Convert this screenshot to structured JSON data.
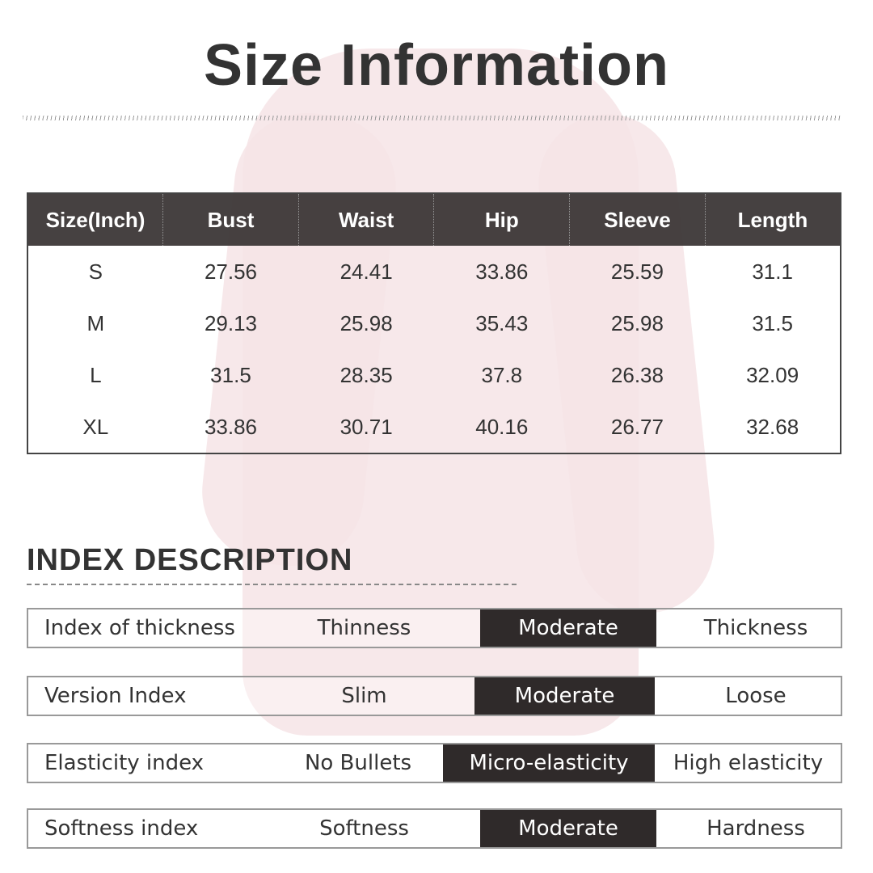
{
  "title": "Size Information",
  "size_table": {
    "headers": [
      "Size(Inch)",
      "Bust",
      "Waist",
      "Hip",
      "Sleeve",
      "Length"
    ],
    "rows": [
      [
        "S",
        "27.56",
        "24.41",
        "33.86",
        "25.59",
        "31.1"
      ],
      [
        "M",
        "29.13",
        "25.98",
        "35.43",
        "25.98",
        "31.5"
      ],
      [
        "L",
        "31.5",
        "28.35",
        "37.8",
        "26.38",
        "32.09"
      ],
      [
        "XL",
        "33.86",
        "30.71",
        "40.16",
        "26.77",
        "32.68"
      ]
    ]
  },
  "index_section": {
    "heading": "INDEX DESCRIPTION",
    "rows": [
      {
        "label": "Index of thickness",
        "options": [
          "Thinness",
          "Moderate",
          "Thickness"
        ],
        "selected": "Moderate"
      },
      {
        "label": "Version Index",
        "options": [
          "Slim",
          "Moderate",
          "Loose"
        ],
        "selected": "Moderate"
      },
      {
        "label": "Elasticity index",
        "options": [
          "No Bullets",
          "Micro-elasticity",
          "High elasticity"
        ],
        "selected": "Micro-elasticity"
      },
      {
        "label": "Softness index",
        "options": [
          "Softness",
          "Moderate",
          "Hardness"
        ],
        "selected": "Moderate"
      }
    ]
  },
  "colors": {
    "header_bg": "#3c3737",
    "highlight_bg": "#2f2a2a",
    "dress": "#f6e4e6"
  }
}
